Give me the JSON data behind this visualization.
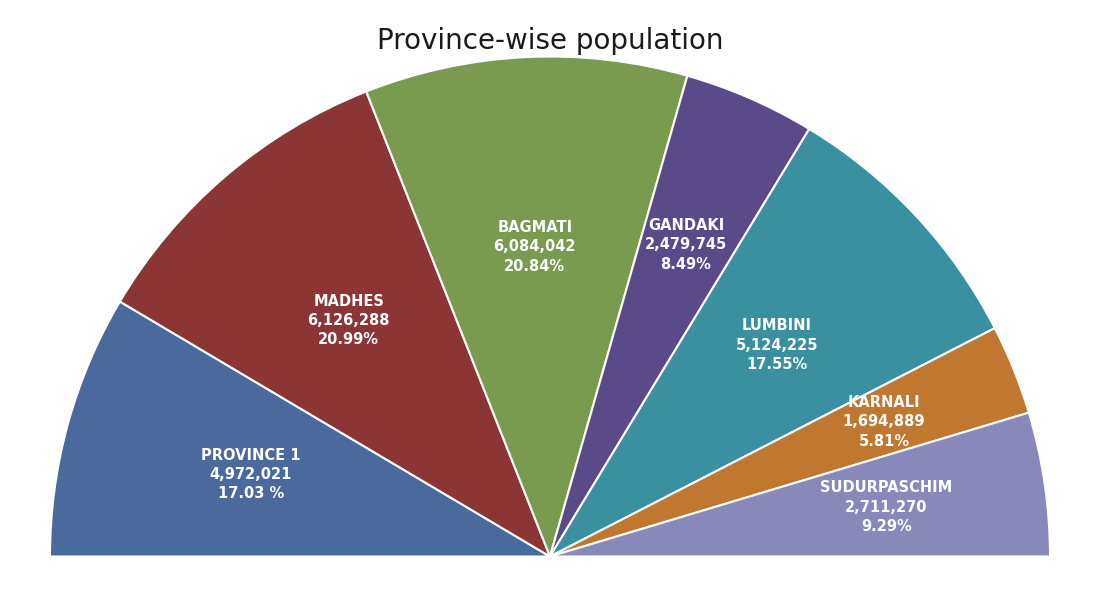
{
  "title": "Province-wise population",
  "title_fontsize": 20,
  "provinces": [
    {
      "name": "PROVINCE 1",
      "population": 4972021,
      "percent": 17.03,
      "color": "#4a6a9e",
      "pct_display": "17.03 %"
    },
    {
      "name": "MADHES",
      "population": 6126288,
      "percent": 20.99,
      "color": "#8b3535",
      "pct_display": "20.99%"
    },
    {
      "name": "BAGMATI",
      "population": 6084042,
      "percent": 20.84,
      "color": "#7a9a50",
      "pct_display": "20.84%"
    },
    {
      "name": "GANDAKI",
      "population": 2479745,
      "percent": 8.49,
      "color": "#5a4a8a",
      "pct_display": "8.49%"
    },
    {
      "name": "LUMBINI",
      "population": 5124225,
      "percent": 17.55,
      "color": "#3a8fa0",
      "pct_display": "17.55%"
    },
    {
      "name": "KARNALI",
      "population": 1694889,
      "percent": 5.81,
      "color": "#c07830",
      "pct_display": "5.81%"
    },
    {
      "name": "SUDURPASCHIM",
      "population": 2711270,
      "percent": 9.29,
      "color": "#8888bb",
      "pct_display": "9.29%"
    }
  ],
  "background_color": "#ffffff",
  "label_color": "#ffffff",
  "label_fontsize": 10.5
}
